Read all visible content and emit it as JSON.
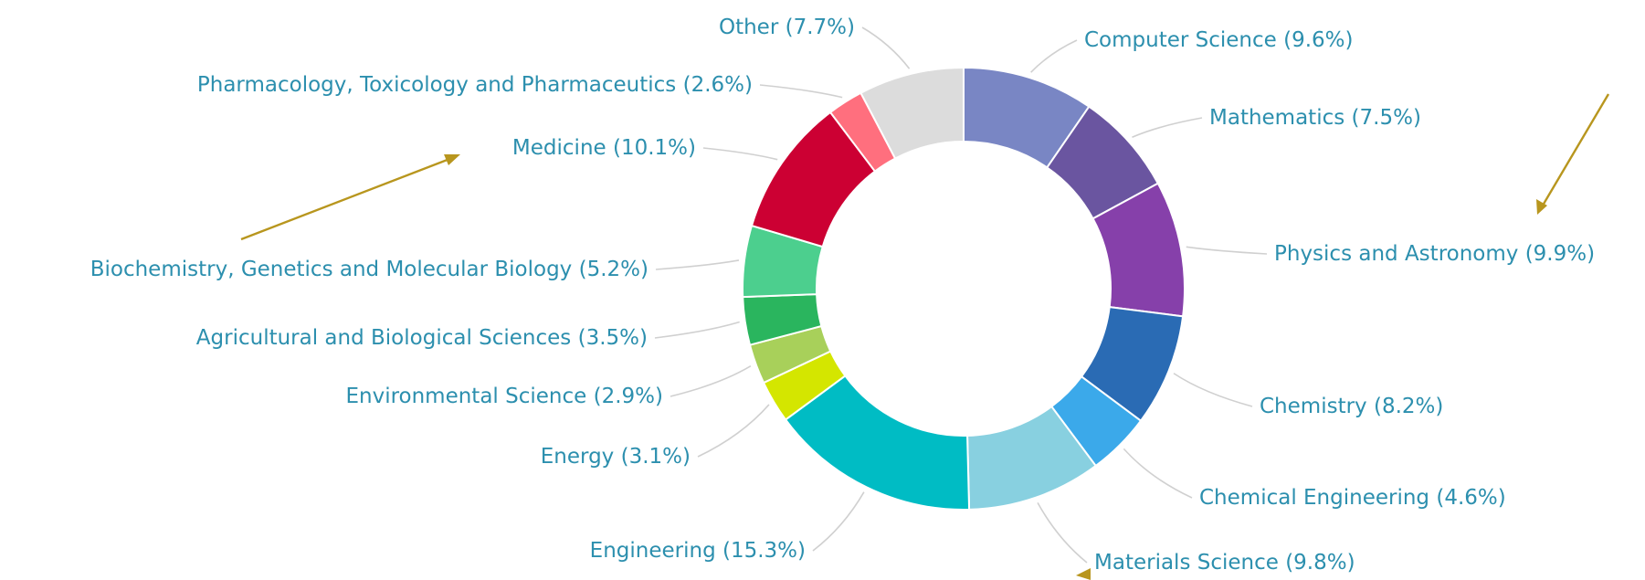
{
  "chart_data": {
    "type": "donut",
    "categories": [
      "Computer Science",
      "Mathematics",
      "Physics and Astronomy",
      "Chemistry",
      "Chemical Engineering",
      "Materials Science",
      "Engineering",
      "Energy",
      "Environmental Science",
      "Agricultural and Biological Sciences",
      "Biochemistry, Genetics and Molecular Biology",
      "Medicine",
      "Pharmacology, Toxicology and Pharmaceutics",
      "Other"
    ],
    "values": [
      9.6,
      7.5,
      9.9,
      8.2,
      4.6,
      9.8,
      15.3,
      3.1,
      2.9,
      3.5,
      5.2,
      10.1,
      2.6,
      7.7
    ],
    "value_labels": [
      "(9.6%)",
      "(7.5%)",
      "(9.9%)",
      "(8.2%)",
      "(4.6%)",
      "(9.8%)",
      "(15.3%)",
      "(3.1%)",
      "(2.9%)",
      "(3.5%)",
      "(5.2%)",
      "(10.1%)",
      "(2.6%)",
      "(7.7%)"
    ],
    "colors": [
      "#7986c4",
      "#6a55a0",
      "#8640aa",
      "#2a6bb4",
      "#3ba9ea",
      "#88d0e0",
      "#00bcc4",
      "#d4e600",
      "#a8d05a",
      "#2ab55e",
      "#4ccf8e",
      "#cc0033",
      "#ff6f7e",
      "#dcdcdc"
    ]
  }
}
